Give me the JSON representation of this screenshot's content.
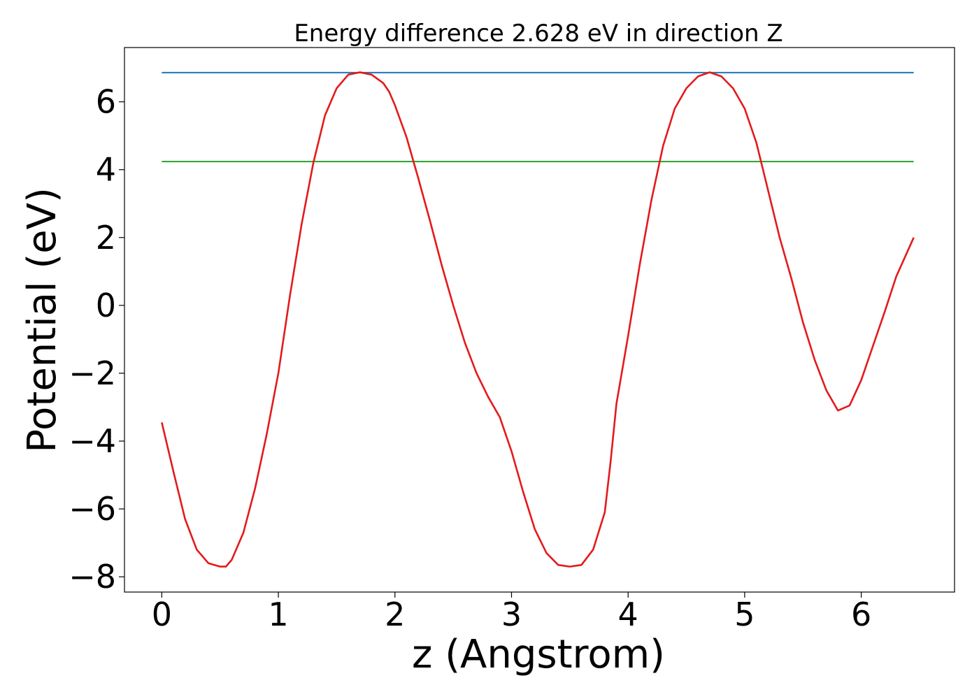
{
  "chart_data": {
    "type": "line",
    "title": "Energy difference 2.628 eV in direction Z",
    "xlabel": "z (Angstrom)",
    "ylabel": "Potential (eV)",
    "xlim": [
      -0.32,
      6.8
    ],
    "ylim": [
      -8.45,
      7.6
    ],
    "xticks": [
      0,
      1,
      2,
      3,
      4,
      5,
      6
    ],
    "yticks": [
      -8,
      -6,
      -4,
      -2,
      0,
      2,
      4,
      6
    ],
    "xtick_labels": [
      "0",
      "1",
      "2",
      "3",
      "4",
      "5",
      "6"
    ],
    "ytick_labels": [
      "−8",
      "−6",
      "−4",
      "−2",
      "0",
      "2",
      "4",
      "6"
    ],
    "grid": false,
    "hlines": [
      {
        "y": 6.86,
        "x_start": 0,
        "x_end": 6.45,
        "color": "#1f77b4"
      },
      {
        "y": 4.24,
        "x_start": 0,
        "x_end": 6.45,
        "color": "#2ca02c"
      }
    ],
    "series": [
      {
        "color": "#e31a1c",
        "x": [
          0,
          0.1,
          0.2,
          0.3,
          0.4,
          0.5,
          0.55,
          0.6,
          0.7,
          0.8,
          0.9,
          1.0,
          1.1,
          1.2,
          1.3,
          1.4,
          1.5,
          1.6,
          1.7,
          1.8,
          1.9,
          1.95,
          2.0,
          2.1,
          2.2,
          2.3,
          2.4,
          2.5,
          2.6,
          2.7,
          2.8,
          2.9,
          3.0,
          3.1,
          3.2,
          3.3,
          3.4,
          3.5,
          3.6,
          3.7,
          3.8,
          3.85,
          3.9,
          4.0,
          4.1,
          4.2,
          4.3,
          4.4,
          4.5,
          4.6,
          4.7,
          4.8,
          4.9,
          5.0,
          5.1,
          5.2,
          5.3,
          5.4,
          5.5,
          5.6,
          5.7,
          5.8,
          5.9,
          6.0,
          6.1,
          6.2,
          6.3,
          6.45
        ],
        "y": [
          -3.45,
          -4.9,
          -6.3,
          -7.2,
          -7.6,
          -7.7,
          -7.7,
          -7.5,
          -6.7,
          -5.4,
          -3.8,
          -2.0,
          0.3,
          2.4,
          4.2,
          5.6,
          6.4,
          6.8,
          6.87,
          6.8,
          6.55,
          6.3,
          5.9,
          4.95,
          3.75,
          2.5,
          1.2,
          0.0,
          -1.1,
          -2.0,
          -2.7,
          -3.3,
          -4.3,
          -5.5,
          -6.6,
          -7.3,
          -7.65,
          -7.7,
          -7.65,
          -7.2,
          -6.1,
          -4.6,
          -2.9,
          -0.9,
          1.2,
          3.1,
          4.7,
          5.8,
          6.4,
          6.75,
          6.87,
          6.75,
          6.4,
          5.8,
          4.8,
          3.4,
          2.0,
          0.8,
          -0.5,
          -1.6,
          -2.5,
          -3.1,
          -2.95,
          -2.2,
          -1.2,
          -0.2,
          0.85,
          2.0
        ]
      }
    ]
  }
}
